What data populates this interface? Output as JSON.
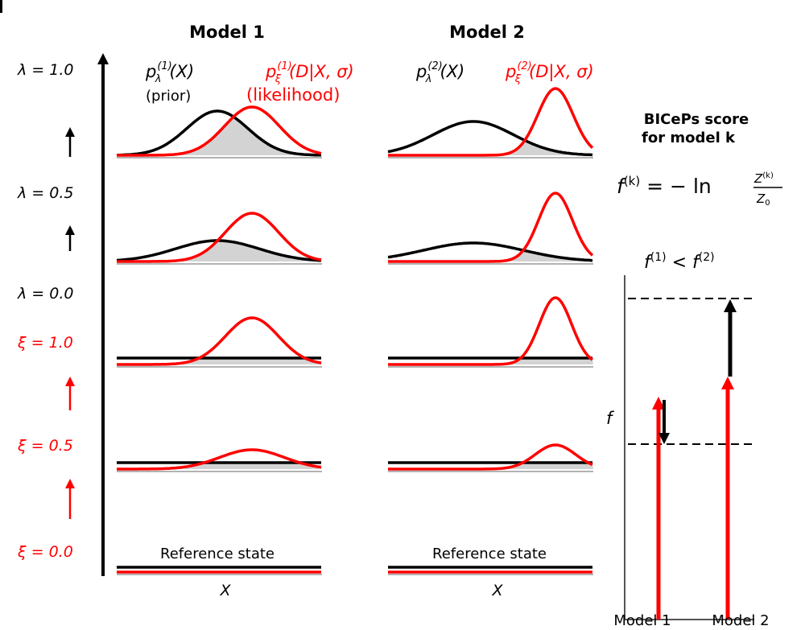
{
  "colors": {
    "prior": "#000000",
    "likelihood": "#ff0000",
    "overlap_fill": "#d3d3d3",
    "baseline": "#999999"
  },
  "headers": {
    "model1": "Model 1",
    "model2": "Model 2"
  },
  "legend": {
    "prior_label": "(prior)",
    "likelihood_label": "(likelihood)",
    "prior_m1": {
      "base": "p",
      "sup": "(1)",
      "sub": "λ",
      "rest": "(X)"
    },
    "like_m1": {
      "base": "p",
      "sup": "(1)",
      "sub": "ξ",
      "rest": "(D|X, σ)"
    },
    "prior_m2": {
      "base": "p",
      "sup": "(2)",
      "sub": "λ",
      "rest": "(X)"
    },
    "like_m2": {
      "base": "p",
      "sup": "(2)",
      "sub": "ξ",
      "rest": "(D|X, σ)"
    }
  },
  "left_labels": {
    "lambda_1": "λ = 1.0",
    "lambda_05": "λ = 0.5",
    "lambda_0": "λ = 0.0",
    "xi_1": "ξ = 1.0",
    "xi_05": "ξ = 0.5",
    "xi_0": "ξ = 0.0"
  },
  "reference_state": "Reference state",
  "x_axis_label": "X",
  "score": {
    "title_line1": "BICePs score",
    "title_line2": "for model k",
    "formula_lhs": "f",
    "formula_lhs_sup": "(k)",
    "formula_eq": " = − ln",
    "formula_num": "Z",
    "formula_num_sup": "(k)",
    "formula_den": "Z",
    "formula_den_sub": "0",
    "comparison": {
      "a": "f",
      "a_sup": "(1)",
      "op": " < ",
      "b": "f",
      "b_sup": "(2)"
    }
  },
  "score_plot": {
    "y_label": "f",
    "x_labels": [
      "Model 1",
      "Model 2"
    ]
  }
}
